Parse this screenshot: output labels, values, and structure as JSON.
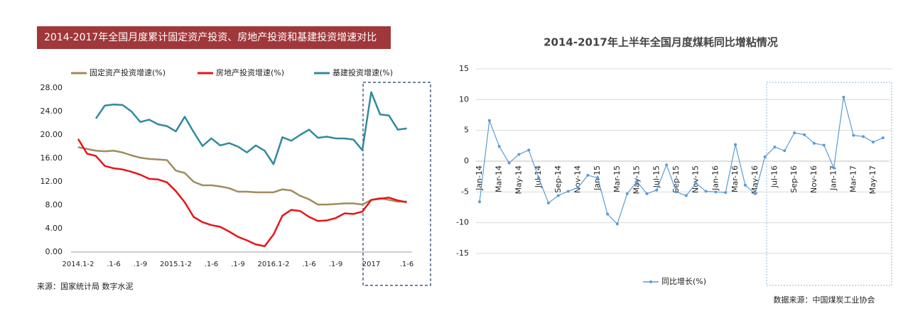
{
  "chart_data": [
    {
      "type": "line",
      "title": "2014-2017年全国月度累计固定资产投资、房地产投资和基建投资增速对比",
      "source": "来源：国家统计局  数字水泥",
      "categories": [
        "2014.1-2",
        null,
        null,
        null,
        ".1-6",
        null,
        null,
        ".1-9",
        null,
        null,
        null,
        "2015.1-2",
        null,
        null,
        null,
        ".1-6",
        null,
        null,
        ".1-9",
        null,
        null,
        null,
        "2016.1-2",
        null,
        null,
        null,
        ".1-6",
        null,
        null,
        ".1-9",
        null,
        null,
        null,
        "2017",
        null,
        null,
        null,
        ".1-6"
      ],
      "series": [
        {
          "name": "固定资产投资增速(%)",
          "color": "#a08c5b",
          "values": [
            17.9,
            17.6,
            17.3,
            17.2,
            17.3,
            17.0,
            16.5,
            16.1,
            15.9,
            15.8,
            15.7,
            13.9,
            13.5,
            12.0,
            11.4,
            11.4,
            11.2,
            10.9,
            10.3,
            10.3,
            10.2,
            10.2,
            10.2,
            10.7,
            10.5,
            9.6,
            9.0,
            8.1,
            8.1,
            8.2,
            8.3,
            8.3,
            8.1,
            8.9,
            9.2,
            8.9,
            8.6,
            8.6
          ]
        },
        {
          "name": "房地产投资增速(%)",
          "color": "#e8141a",
          "values": [
            19.3,
            16.8,
            16.4,
            14.7,
            14.3,
            14.1,
            13.7,
            13.2,
            12.5,
            12.4,
            11.9,
            10.4,
            8.5,
            6.0,
            5.1,
            4.6,
            4.3,
            3.5,
            2.6,
            2.0,
            1.3,
            1.0,
            3.0,
            6.2,
            7.2,
            7.0,
            6.0,
            5.3,
            5.4,
            5.8,
            6.6,
            6.5,
            6.9,
            8.9,
            9.1,
            9.3,
            8.8,
            8.5
          ]
        },
        {
          "name": "基建投资增速(%)",
          "color": "#318a9c",
          "values": [
            null,
            null,
            22.8,
            25.0,
            25.2,
            25.1,
            24.0,
            22.2,
            22.6,
            21.8,
            21.5,
            20.6,
            23.1,
            20.5,
            18.1,
            19.4,
            18.2,
            18.6,
            18.0,
            17.0,
            18.2,
            17.3,
            15.0,
            19.6,
            19.0,
            20.0,
            20.9,
            19.5,
            19.7,
            19.4,
            19.4,
            19.2,
            17.4,
            27.3,
            23.5,
            23.3,
            20.9,
            21.1
          ]
        }
      ],
      "ylim": [
        0,
        28
      ],
      "yticks": [
        {
          "value": 0,
          "label": "0.00"
        },
        {
          "value": 4,
          "label": "4.00"
        },
        {
          "value": 8,
          "label": "8.00"
        },
        {
          "value": 12,
          "label": "12.00"
        },
        {
          "value": 16,
          "label": "16.00"
        },
        {
          "value": 20,
          "label": "20.00"
        },
        {
          "value": 24,
          "label": "24.00"
        },
        {
          "value": 28,
          "label": "28.00"
        }
      ],
      "grid": false,
      "legend": "top"
    },
    {
      "type": "line",
      "title": "2014-2017年上半年全国月度煤耗同比增粘情况",
      "source": "数据来源：中国煤炭工业协会",
      "categories": [
        "Jan-14",
        null,
        "Mar-14",
        null,
        "May-14",
        null,
        "Jul-14",
        null,
        "Sep-14",
        null,
        "Nov-14",
        null,
        "Jan-15",
        null,
        "Mar-15",
        null,
        "May-15",
        null,
        "Jul-15",
        null,
        "Sep-15",
        null,
        "Nov-15",
        null,
        "Jan-16",
        null,
        "Mar-16",
        null,
        "May-16",
        null,
        "Jul-16",
        null,
        "Sep-16",
        null,
        "Nov-16",
        null,
        "Jan-17",
        null,
        "Mar-17",
        null,
        "May-17",
        null
      ],
      "series": [
        {
          "name": "同比增长(%)",
          "color": "#5b9bd5",
          "values": [
            -6.6,
            6.6,
            2.4,
            -0.3,
            1.1,
            1.8,
            -2.7,
            -6.8,
            -5.6,
            -4.9,
            -4.3,
            -2.3,
            -2.7,
            -8.6,
            -10.2,
            -5.3,
            -3.3,
            -5.3,
            -4.7,
            -0.6,
            -5.0,
            -5.6,
            -3.6,
            -4.9,
            -5.0,
            -5.1,
            2.7,
            -3.9,
            -5.3,
            0.7,
            2.3,
            1.7,
            4.6,
            4.3,
            2.9,
            2.6,
            -1.1,
            10.4,
            4.2,
            4.0,
            3.1,
            3.8
          ]
        }
      ],
      "ylim": [
        -15,
        15
      ],
      "yticks": [
        -15,
        -10,
        -5,
        0,
        5,
        10,
        15
      ],
      "grid": true,
      "legend": "bottom"
    }
  ]
}
